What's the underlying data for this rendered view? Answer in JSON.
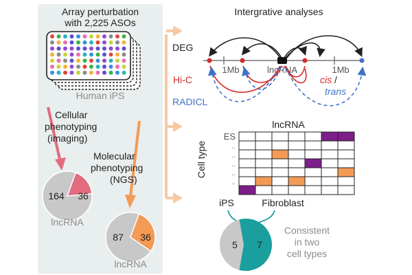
{
  "left_panel": {
    "title_line1": "Array perturbation",
    "title_line2": "with 2,225 ASOs",
    "plate_label": "Human iPS",
    "cellular_line1": "Cellular",
    "cellular_line2": "phenotyping",
    "cellular_line3": "(imaging)",
    "molecular_line1": "Molecular",
    "molecular_line2": "phenotyping",
    "molecular_line3": "(NGS)",
    "pie_cellular": {
      "gray_value": "164",
      "colored_value": "36",
      "label": "lncRNA",
      "colored_fraction": 0.18
    },
    "pie_molecular": {
      "gray_value": "87",
      "colored_value": "36",
      "label": "lncRNA",
      "colored_fraction": 0.29
    }
  },
  "integrative": {
    "title": "Intergrative analyses",
    "deg_label": "DEG",
    "hic_label": "Hi-C",
    "radicl_label": "RADICL",
    "tick_left": "1Mb",
    "tick_center": "lncRNA",
    "tick_right": "1Mb",
    "cis_label": "cis",
    "slash": "/",
    "trans_label": "trans"
  },
  "matrix": {
    "title": "lncRNA",
    "axis_label": "Cell type",
    "row_labels": [
      "ES",
      "..",
      "..",
      "..",
      "..",
      ".."
    ],
    "grid": [
      [
        0,
        0,
        0,
        0,
        0,
        1,
        1
      ],
      [
        0,
        0,
        0,
        0,
        0,
        0,
        0
      ],
      [
        0,
        0,
        2,
        0,
        0,
        0,
        0
      ],
      [
        0,
        0,
        0,
        0,
        1,
        0,
        0
      ],
      [
        0,
        0,
        0,
        0,
        0,
        0,
        2
      ],
      [
        0,
        2,
        0,
        2,
        0,
        0,
        0
      ],
      [
        1,
        0,
        0,
        0,
        0,
        0,
        0
      ]
    ]
  },
  "consistency": {
    "label_ips": "iPS",
    "label_fibroblast": "Fibroblast",
    "gray_value": "5",
    "colored_value": "7",
    "colored_fraction": 0.58,
    "note_line1": "Consistent",
    "note_line2": "in two",
    "note_line3": "cell types"
  },
  "colors": {
    "panel_bg": "#e9eeee",
    "pink": "#e26b7e",
    "orange": "#f39a55",
    "teal": "#1a9e9e",
    "purple": "#7d1e8a",
    "gray_pie": "#c8c8c8",
    "red": "#d42a2a",
    "blue": "#3f72c8",
    "arrow_light": "#f7c9a2",
    "text_gray": "#8c8c8c"
  }
}
